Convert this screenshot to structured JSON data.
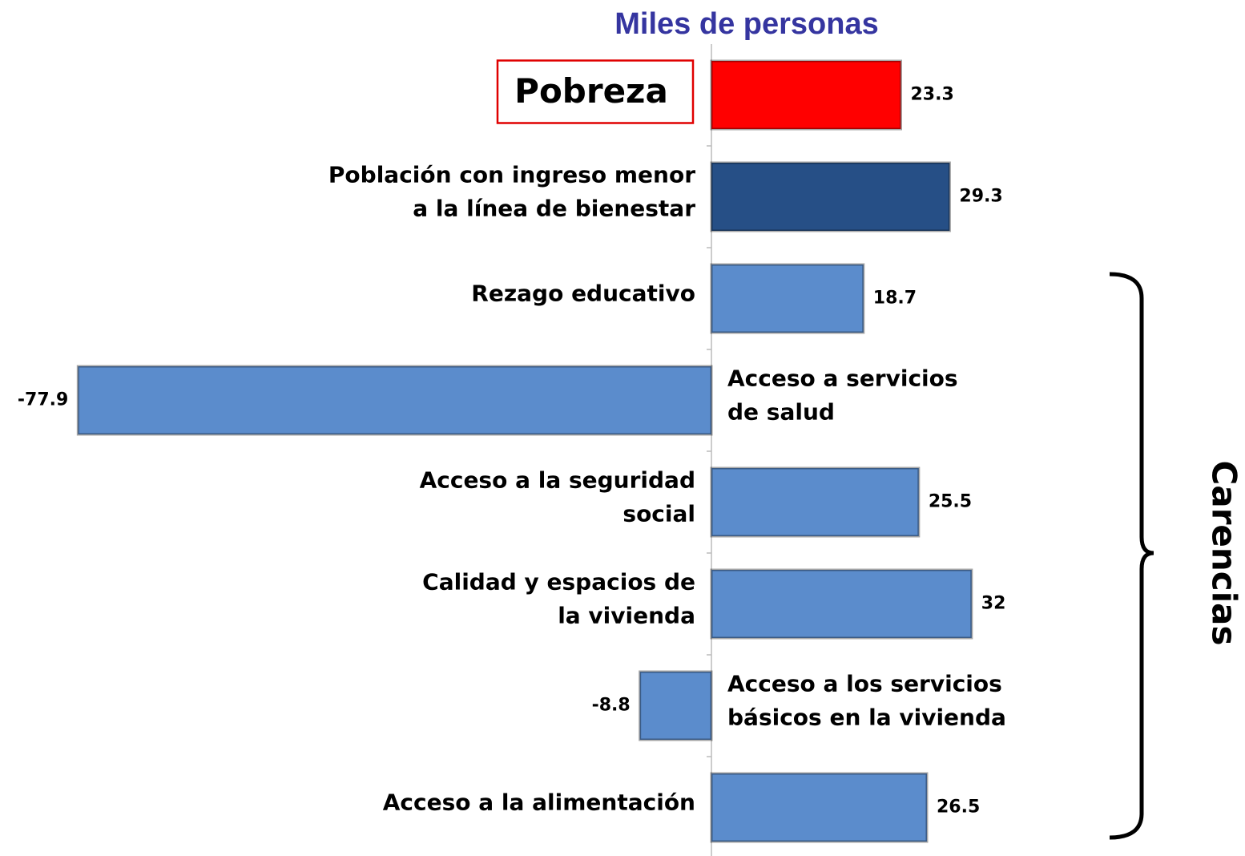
{
  "chart_data": {
    "type": "barh",
    "title": "Miles de personas",
    "annotation": "Carencias",
    "categories": [
      [
        "Pobreza"
      ],
      [
        "Población con ingreso menor",
        "a la línea de bienestar"
      ],
      [
        "Rezago educativo"
      ],
      [
        "Acceso a servicios",
        "de salud"
      ],
      [
        "Acceso a  la seguridad",
        "social"
      ],
      [
        "Calidad y espacios de",
        "la vivienda"
      ],
      [
        "Acceso a los servicios",
        "básicos en la vivienda"
      ],
      [
        "Acceso a la alimentación"
      ]
    ],
    "values": [
      23.3,
      29.3,
      18.7,
      -77.9,
      25.5,
      32,
      -8.8,
      26.5
    ],
    "colors": [
      "#ff0000",
      "#264f86",
      "#5b8ccc",
      "#5b8ccc",
      "#5b8ccc",
      "#5b8ccc",
      "#5b8ccc",
      "#5b8ccc"
    ]
  }
}
